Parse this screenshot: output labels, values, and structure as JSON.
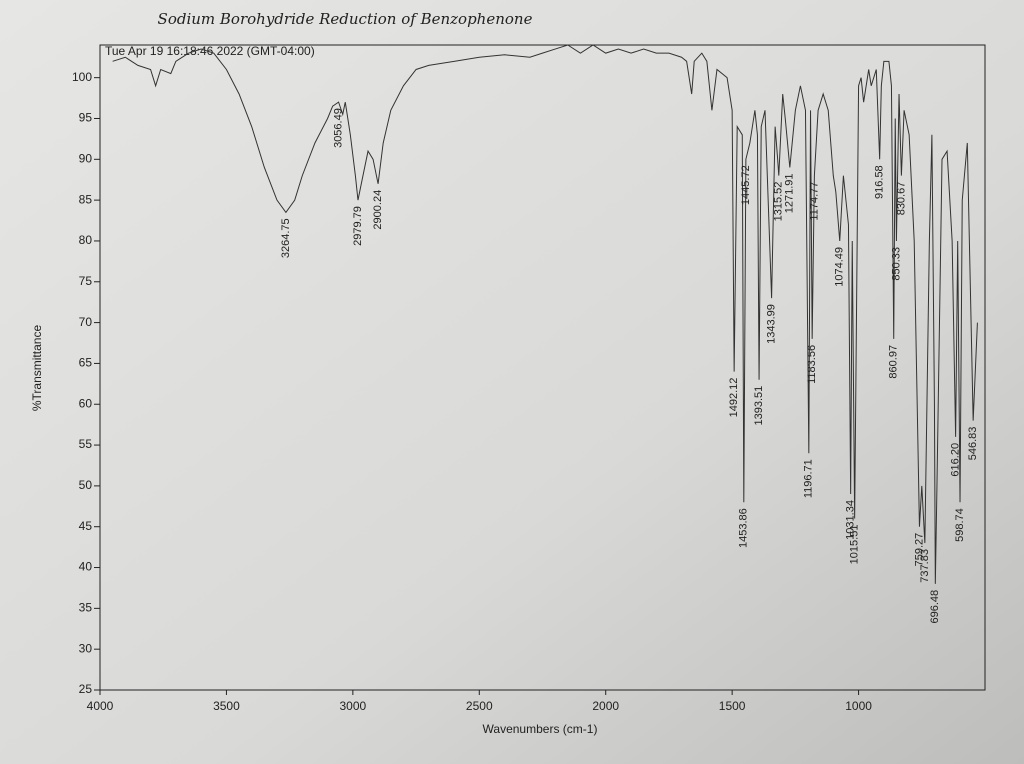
{
  "chart_data": {
    "type": "line",
    "title": "Sodium Borohydride Reduction of Benzophenone",
    "subtitle": "Tue Apr 19 16:18:46 2022 (GMT-04:00)",
    "x_label": "Wavenumbers (cm-1)",
    "y_label": "%Transmittance",
    "color": "#333333",
    "xlim": [
      4000,
      500
    ],
    "ylim": [
      25,
      104
    ],
    "xticks": [
      4000,
      3500,
      3000,
      2500,
      2000,
      1500,
      1000
    ],
    "yticks": [
      25,
      30,
      35,
      40,
      45,
      50,
      55,
      60,
      65,
      70,
      75,
      80,
      85,
      90,
      95,
      100
    ],
    "x": [
      3950,
      3900,
      3850,
      3800,
      3780,
      3760,
      3720,
      3700,
      3650,
      3600,
      3550,
      3500,
      3450,
      3400,
      3350,
      3300,
      3264.75,
      3230,
      3200,
      3150,
      3100,
      3080,
      3056.49,
      3040,
      3030,
      3010,
      2990,
      2979.79,
      2960,
      2940,
      2920,
      2900.24,
      2880,
      2850,
      2800,
      2750,
      2700,
      2600,
      2500,
      2400,
      2300,
      2250,
      2200,
      2150,
      2100,
      2050,
      2000,
      1950,
      1900,
      1850,
      1800,
      1750,
      1700,
      1680,
      1660,
      1650,
      1620,
      1600,
      1580,
      1560,
      1520,
      1500,
      1492.12,
      1480,
      1460,
      1453.86,
      1445.72,
      1430,
      1410,
      1400,
      1393.51,
      1385,
      1370,
      1343.99,
      1330,
      1320,
      1315.52,
      1300,
      1290,
      1271.91,
      1250,
      1230,
      1210,
      1196.71,
      1190,
      1183.56,
      1174.77,
      1160,
      1140,
      1120,
      1100,
      1090,
      1074.49,
      1060,
      1040,
      1031.34,
      1025,
      1015.51,
      1000,
      990,
      980,
      960,
      950,
      930,
      916.58,
      910,
      900,
      880,
      870,
      860.97,
      855,
      850.33,
      840,
      830.67,
      820,
      800,
      780,
      759.27,
      750,
      737.83,
      720,
      710,
      700,
      696.48,
      690,
      670,
      650,
      630,
      616.2,
      608,
      598.74,
      590,
      570,
      546.83,
      530
    ],
    "values": [
      102,
      102.5,
      101.5,
      101,
      99,
      101,
      100.5,
      102,
      103,
      103.5,
      103,
      101,
      98,
      94,
      89,
      85,
      83.5,
      85,
      88,
      92,
      95,
      96.5,
      97,
      95.5,
      97,
      93,
      88,
      85,
      88,
      91,
      90,
      87,
      92,
      96,
      99,
      101,
      101.5,
      102,
      102.5,
      102.8,
      102.5,
      103,
      103.5,
      104,
      103,
      104,
      103,
      103.5,
      103,
      103.5,
      103,
      103,
      102.5,
      102,
      98,
      102,
      103,
      102,
      96,
      101,
      100,
      96,
      64,
      94,
      93,
      48,
      90,
      92,
      96,
      93,
      63,
      94,
      96,
      73,
      94,
      90,
      88,
      98,
      95,
      89,
      96,
      99,
      96,
      54,
      96,
      68,
      88,
      96,
      98,
      96,
      88,
      86,
      80,
      88,
      82,
      49,
      80,
      46,
      99,
      100,
      97,
      101,
      99,
      101,
      90,
      99,
      102,
      102,
      99,
      68,
      95,
      80,
      98,
      88,
      96,
      93,
      80,
      45,
      50,
      43,
      80,
      93,
      60,
      38,
      50,
      90,
      91,
      80,
      56,
      80,
      48,
      85,
      92,
      58,
      70
    ],
    "annotations": [
      3264.75,
      3056.49,
      2979.79,
      2900.24,
      1492.12,
      1453.86,
      1445.72,
      1393.51,
      1343.99,
      1315.52,
      1271.91,
      1196.71,
      1183.56,
      1174.77,
      1074.49,
      1031.34,
      1015.51,
      916.58,
      860.97,
      850.33,
      830.67,
      759.27,
      737.83,
      696.48,
      {
        "value": 616.2,
        "label": "616.20"
      },
      598.74,
      546.83
    ]
  }
}
